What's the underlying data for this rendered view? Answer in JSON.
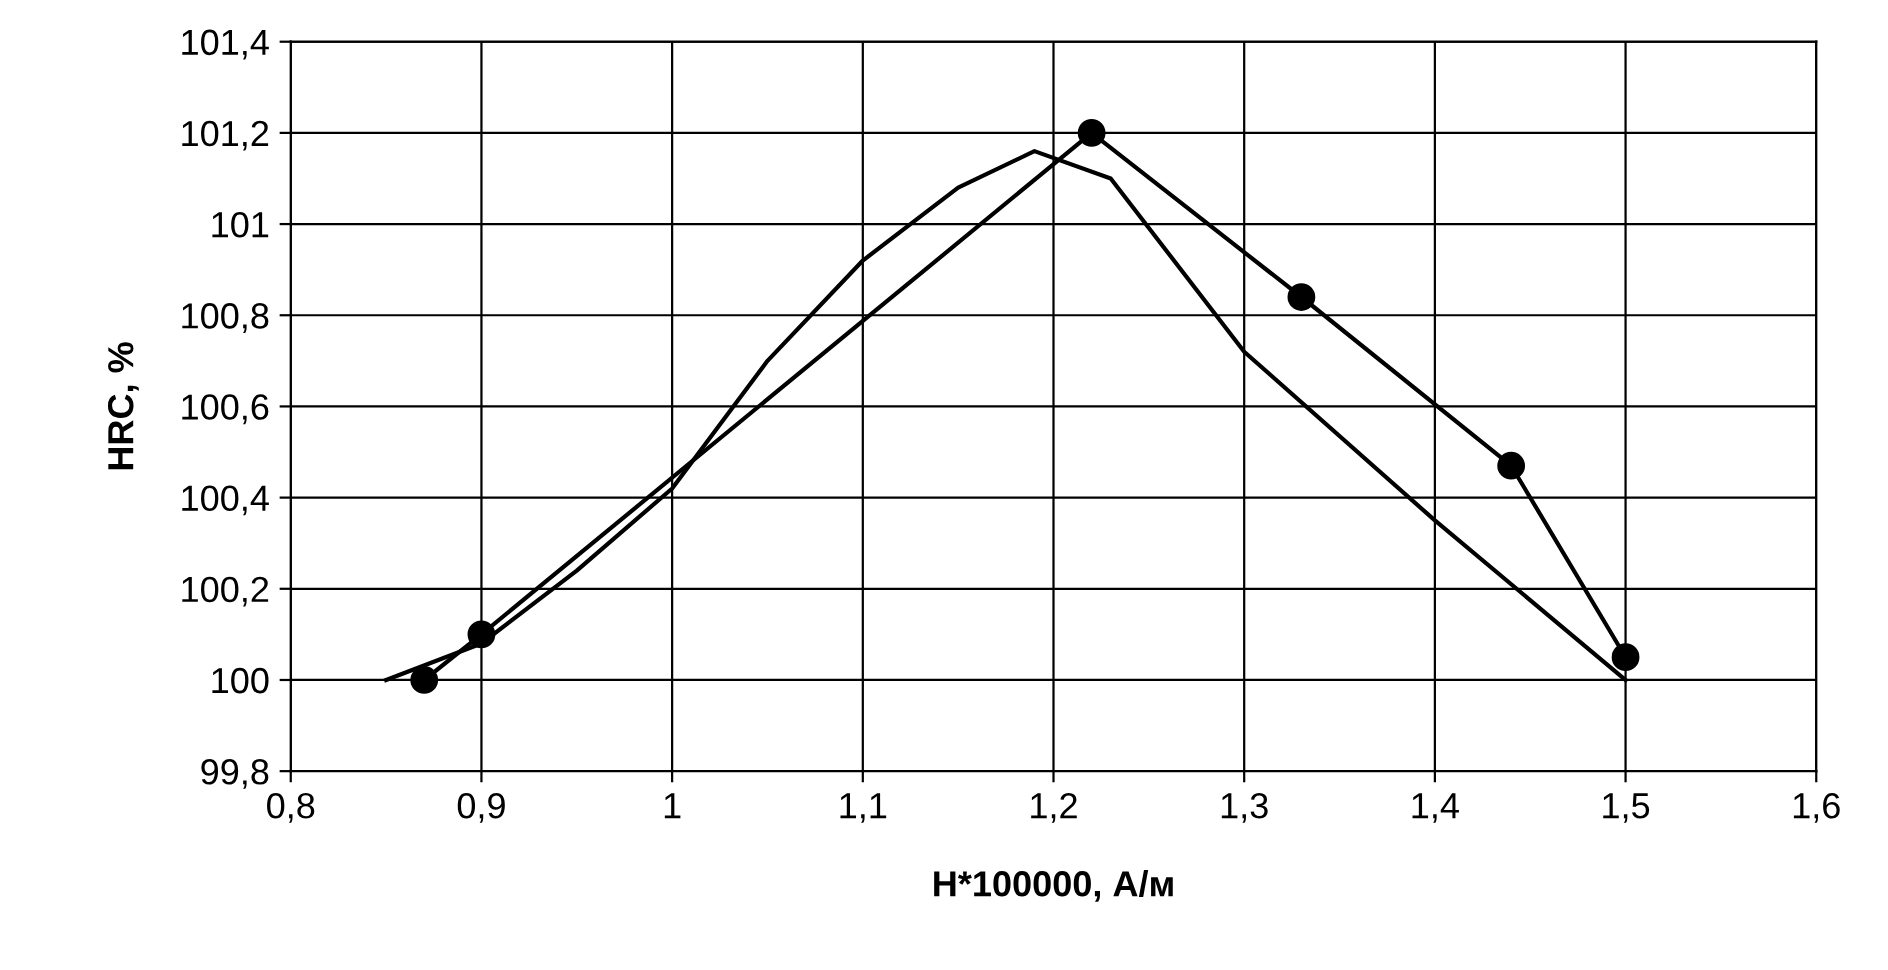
{
  "chart_data": {
    "type": "line",
    "xlabel": "H*100000, А/м",
    "ylabel": "HRC, %",
    "xlim": [
      0.8,
      1.6
    ],
    "xticks": [
      {
        "value": 0.8,
        "label": "0,8"
      },
      {
        "value": 0.9,
        "label": "0,9"
      },
      1,
      {
        "value": 1.1,
        "label": "1,1"
      },
      {
        "value": 1.2,
        "label": "1,2"
      },
      {
        "value": 1.3,
        "label": "1,3"
      },
      {
        "value": 1.4,
        "label": "1,4"
      },
      {
        "value": 1.5,
        "label": "1,5"
      },
      {
        "value": 1.6,
        "label": "1,6"
      }
    ],
    "ylim": [
      99.8,
      101.4
    ],
    "yticks": [
      {
        "value": 99.8,
        "label": "99,8"
      },
      100,
      {
        "value": 100.2,
        "label": "100,2"
      },
      {
        "value": 100.4,
        "label": "100,4"
      },
      {
        "value": 100.6,
        "label": "100,6"
      },
      {
        "value": 100.8,
        "label": "100,8"
      },
      101,
      {
        "value": 101.2,
        "label": "101,2"
      },
      {
        "value": 101.4,
        "label": "101,4"
      }
    ],
    "grid": true,
    "legend": false,
    "series": [
      {
        "color": "#000000",
        "marker": "circle",
        "x": [
          0.87,
          0.9,
          1.22,
          1.33,
          1.44,
          1.5
        ],
        "values": [
          100.0,
          100.1,
          101.2,
          100.84,
          100.47,
          100.05
        ]
      },
      {
        "color": "#000000",
        "marker": "none",
        "x": [
          0.85,
          0.9,
          0.95,
          1.0,
          1.05,
          1.1,
          1.15,
          1.19,
          1.23,
          1.3,
          1.4,
          1.5
        ],
        "values": [
          100.0,
          100.08,
          100.24,
          100.42,
          100.7,
          100.92,
          101.08,
          101.16,
          101.1,
          100.72,
          100.35,
          100.0
        ]
      }
    ]
  }
}
